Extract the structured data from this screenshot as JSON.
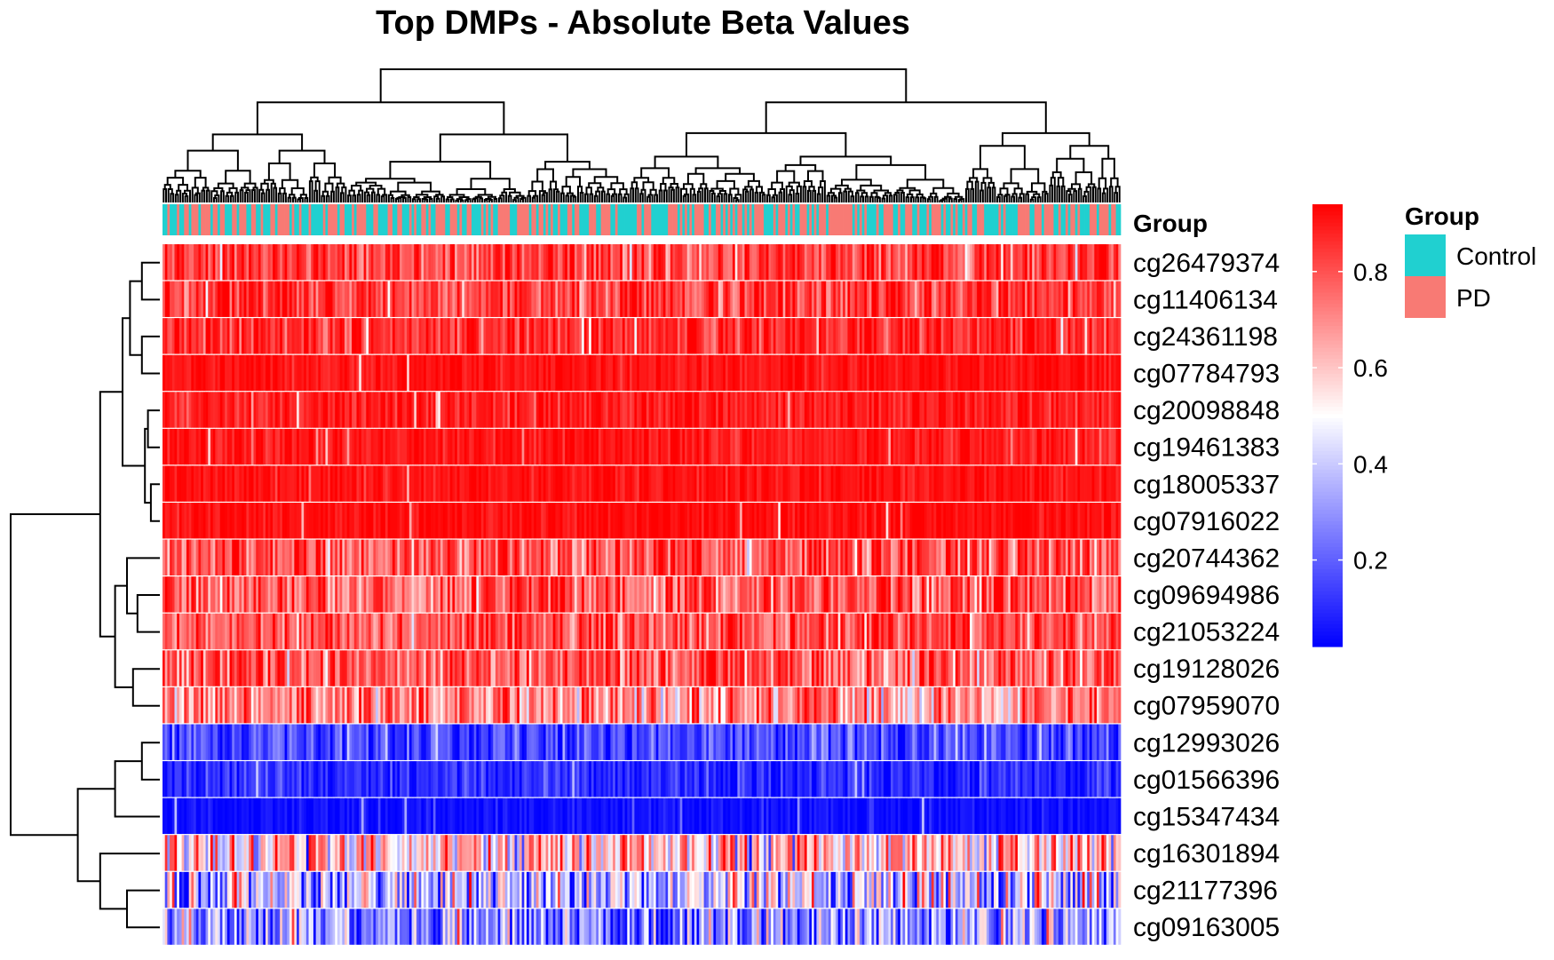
{
  "chart_data": {
    "type": "heatmap",
    "title": "Top DMPs - Absolute Beta Values",
    "annotation_label": "Group",
    "rows": [
      {
        "name": "cg26479374",
        "mean": 0.83,
        "spread": 0.09
      },
      {
        "name": "cg11406134",
        "mean": 0.84,
        "spread": 0.09
      },
      {
        "name": "cg24361198",
        "mean": 0.87,
        "spread": 0.07
      },
      {
        "name": "cg07784793",
        "mean": 0.91,
        "spread": 0.03
      },
      {
        "name": "cg20098848",
        "mean": 0.89,
        "spread": 0.05
      },
      {
        "name": "cg19461383",
        "mean": 0.9,
        "spread": 0.04
      },
      {
        "name": "cg18005337",
        "mean": 0.91,
        "spread": 0.03
      },
      {
        "name": "cg07916022",
        "mean": 0.92,
        "spread": 0.03
      },
      {
        "name": "cg20744362",
        "mean": 0.8,
        "spread": 0.12
      },
      {
        "name": "cg09694986",
        "mean": 0.78,
        "spread": 0.11
      },
      {
        "name": "cg21053224",
        "mean": 0.8,
        "spread": 0.1
      },
      {
        "name": "cg19128026",
        "mean": 0.78,
        "spread": 0.12
      },
      {
        "name": "cg07959070",
        "mean": 0.7,
        "spread": 0.13
      },
      {
        "name": "cg12993026",
        "mean": 0.16,
        "spread": 0.09
      },
      {
        "name": "cg01566396",
        "mean": 0.1,
        "spread": 0.06
      },
      {
        "name": "cg15347434",
        "mean": 0.05,
        "spread": 0.03
      },
      {
        "name": "cg16301894",
        "mean": 0.6,
        "spread": 0.2
      },
      {
        "name": "cg21177396",
        "mean": 0.38,
        "spread": 0.22
      },
      {
        "name": "cg09163005",
        "mean": 0.3,
        "spread": 0.2
      }
    ],
    "row_dendrogram": [
      {
        "a": 0,
        "b": 1,
        "height": 0.12
      },
      {
        "a": 2,
        "b": 3,
        "height": 0.12
      },
      {
        "a": 4,
        "b": 5,
        "height": 0.08
      },
      {
        "a": 6,
        "b": 7,
        "height": 0.06
      },
      {
        "a": 9,
        "b": 10,
        "height": 0.15
      },
      {
        "a": 11,
        "b": 12,
        "height": 0.18
      },
      {
        "a": 13,
        "b": 14,
        "height": 0.12
      },
      {
        "a": 17,
        "b": 18,
        "height": 0.22
      },
      {
        "a": "c2",
        "b": "c3",
        "height": 0.1
      },
      {
        "a": "c0",
        "b": "c1",
        "height": 0.2
      },
      {
        "a": "c9",
        "b": "c8",
        "height": 0.25
      },
      {
        "a": 8,
        "b": "c4",
        "height": 0.22
      },
      {
        "a": "c11",
        "b": "c5",
        "height": 0.3
      },
      {
        "a": "c10",
        "b": "c12",
        "height": 0.4
      },
      {
        "a": "c6",
        "b": 15,
        "height": 0.3
      },
      {
        "a": 16,
        "b": "c7",
        "height": 0.4
      },
      {
        "a": "c14",
        "b": "c15",
        "height": 0.55
      },
      {
        "a": "c13",
        "b": "c16",
        "height": 1.0
      }
    ],
    "column_count": 400,
    "groups": [
      {
        "name": "Control",
        "color": "#20d0d0"
      },
      {
        "name": "PD",
        "color": "#f87a74"
      }
    ],
    "color_scale": {
      "low": "#0000ff",
      "mid": "#ffffff",
      "high": "#ff0000",
      "min": 0.02,
      "max": 0.94,
      "midpoint": 0.5,
      "ticks": [
        {
          "value": 0.2,
          "label": "0.2"
        },
        {
          "value": 0.4,
          "label": "0.4"
        },
        {
          "value": 0.6,
          "label": "0.6"
        },
        {
          "value": 0.8,
          "label": "0.8"
        }
      ]
    },
    "legend": {
      "title": "Group",
      "entries": [
        "Control",
        "PD"
      ]
    }
  }
}
